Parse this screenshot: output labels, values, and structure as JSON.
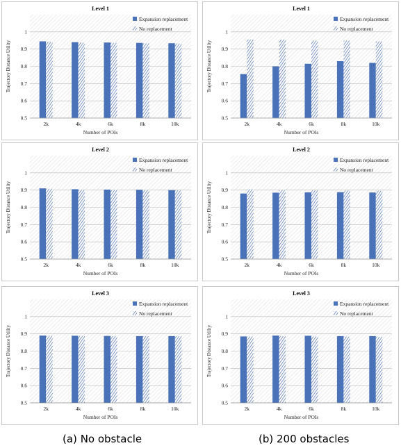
{
  "captions": {
    "left_label": "(a)",
    "left_text": "No obstacle",
    "right_label": "(b)",
    "right_text": "200 obstacles"
  },
  "colors": {
    "expansion": "#4a72b8",
    "no_replacement_stripe": "#3d64aa",
    "plot_hatch": "#cfcfcf"
  },
  "chart_data": [
    {
      "type": "bar",
      "column": "No obstacle",
      "title": "Level 1",
      "xlabel": "Number of POIs",
      "ylabel": "Trajectory Distance Utility",
      "categories": [
        "2k",
        "4k",
        "6k",
        "8k",
        "10k"
      ],
      "ylim": [
        0.5,
        1.1
      ],
      "yticks": [
        "0.5",
        "0.6",
        "0.7",
        "0.8",
        "0.9",
        "1"
      ],
      "grid": true,
      "legend_position": "top-right",
      "series": [
        {
          "name": "Expansion replacement",
          "values": [
            0.945,
            0.94,
            0.938,
            0.936,
            0.934
          ]
        },
        {
          "name": "No replacement",
          "values": [
            0.942,
            0.938,
            0.936,
            0.933,
            0.932
          ]
        }
      ]
    },
    {
      "type": "bar",
      "column": "200 obstacles",
      "title": "Level 1",
      "xlabel": "Number of POIs",
      "ylabel": "Trajectory Distance Utility",
      "categories": [
        "2k",
        "4k",
        "6k",
        "8k",
        "10k"
      ],
      "ylim": [
        0.5,
        1.1
      ],
      "yticks": [
        "0.5",
        "0.6",
        "0.7",
        "0.8",
        "0.9",
        "1"
      ],
      "grid": true,
      "legend_position": "top-right",
      "series": [
        {
          "name": "Expansion replacement",
          "values": [
            0.755,
            0.8,
            0.815,
            0.83,
            0.82
          ]
        },
        {
          "name": "No replacement",
          "values": [
            0.955,
            0.955,
            0.95,
            0.95,
            0.945
          ]
        }
      ]
    },
    {
      "type": "bar",
      "column": "No obstacle",
      "title": "Level 2",
      "xlabel": "Number of POIs",
      "ylabel": "Trajectory Distance Utility",
      "categories": [
        "2k",
        "4k",
        "6k",
        "8k",
        "10k"
      ],
      "ylim": [
        0.5,
        1.1
      ],
      "yticks": [
        "0.5",
        "0.6",
        "0.7",
        "0.8",
        "0.9",
        "1"
      ],
      "grid": true,
      "legend_position": "top-right",
      "series": [
        {
          "name": "Expansion replacement",
          "values": [
            0.91,
            0.905,
            0.903,
            0.902,
            0.9
          ]
        },
        {
          "name": "No replacement",
          "values": [
            0.908,
            0.903,
            0.901,
            0.9,
            0.899
          ]
        }
      ]
    },
    {
      "type": "bar",
      "column": "200 obstacles",
      "title": "Level 2",
      "xlabel": "Number of POIs",
      "ylabel": "Trajectory Distance Utility",
      "categories": [
        "2k",
        "4k",
        "6k",
        "8k",
        "10k"
      ],
      "ylim": [
        0.5,
        1.1
      ],
      "yticks": [
        "0.5",
        "0.6",
        "0.7",
        "0.8",
        "0.9",
        "1"
      ],
      "grid": true,
      "legend_position": "top-right",
      "series": [
        {
          "name": "Expansion replacement",
          "values": [
            0.88,
            0.885,
            0.887,
            0.888,
            0.886
          ]
        },
        {
          "name": "No replacement",
          "values": [
            0.905,
            0.9,
            0.898,
            0.897,
            0.896
          ]
        }
      ]
    },
    {
      "type": "bar",
      "column": "No obstacle",
      "title": "Level 3",
      "xlabel": "Number of POIs",
      "ylabel": "Trajectory Distance Utility",
      "categories": [
        "2k",
        "4k",
        "6k",
        "8k",
        "10k"
      ],
      "ylim": [
        0.5,
        1.1
      ],
      "yticks": [
        "0.5",
        "0.6",
        "0.7",
        "0.8",
        "0.9",
        "1"
      ],
      "grid": true,
      "legend_position": "top-right",
      "series": [
        {
          "name": "Expansion replacement",
          "values": [
            0.89,
            0.889,
            0.888,
            0.887,
            0.887
          ]
        },
        {
          "name": "No replacement",
          "values": [
            0.889,
            0.888,
            0.887,
            0.886,
            0.886
          ]
        }
      ]
    },
    {
      "type": "bar",
      "column": "200 obstacles",
      "title": "Level 3",
      "xlabel": "Number of POIs",
      "ylabel": "Trajectory Distance Utility",
      "categories": [
        "2k",
        "4k",
        "6k",
        "8k",
        "10k"
      ],
      "ylim": [
        0.5,
        1.1
      ],
      "yticks": [
        "0.5",
        "0.6",
        "0.7",
        "0.8",
        "0.9",
        "1"
      ],
      "grid": true,
      "legend_position": "top-right",
      "series": [
        {
          "name": "Expansion replacement",
          "values": [
            0.885,
            0.89,
            0.889,
            0.887,
            0.887
          ]
        },
        {
          "name": "No replacement",
          "values": [
            0.884,
            0.886,
            0.885,
            0.884,
            0.883
          ]
        }
      ]
    }
  ]
}
